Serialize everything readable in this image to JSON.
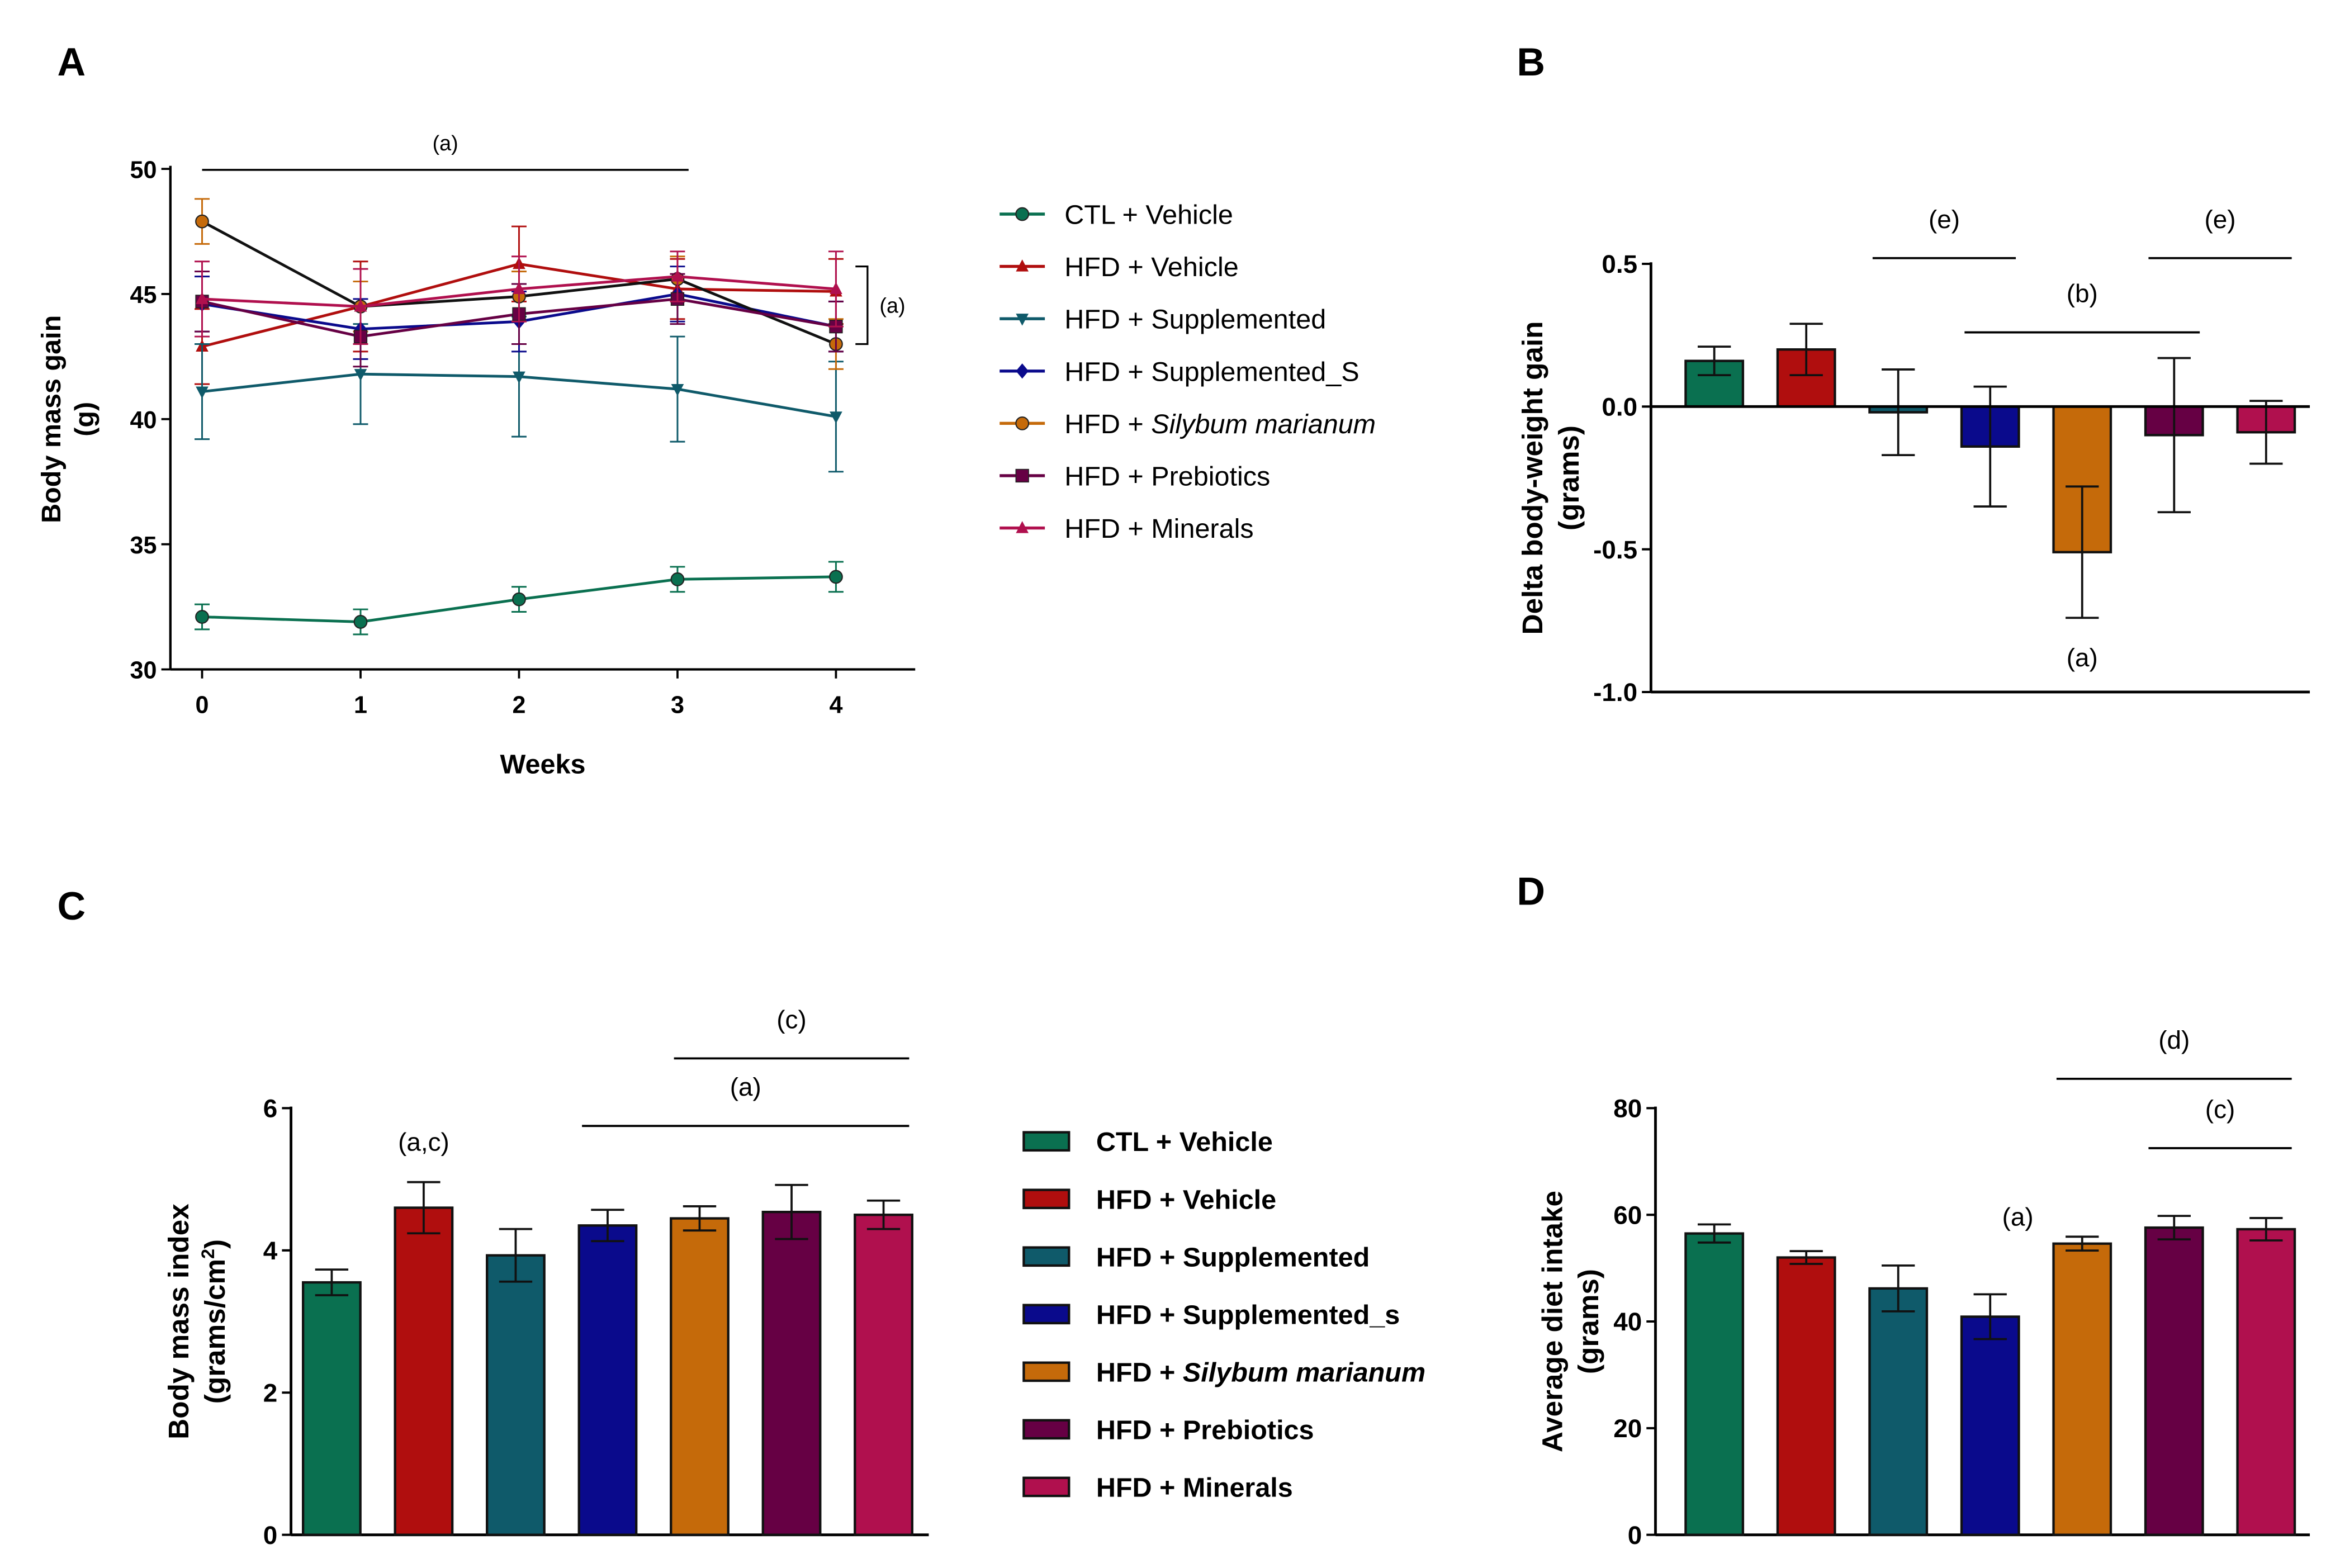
{
  "figure": {
    "groups": [
      {
        "name": "CTL + Vehicle",
        "legend_bold": "CTL + Vehicle",
        "color": "#0a7050",
        "marker": "circle"
      },
      {
        "name": "HFD + Vehicle",
        "legend_bold": "HFD + Vehicle",
        "color": "#b00e0e",
        "marker": "triangle-up"
      },
      {
        "name": "HFD + Supplemented",
        "legend_bold": "HFD + Supplemented",
        "color": "#0f5a6a",
        "marker": "triangle-down"
      },
      {
        "name": "HFD + Supplemented_S",
        "legend_bold": "HFD + Supplemented_s",
        "color": "#0a0a8c",
        "marker": "diamond"
      },
      {
        "name": "HFD + Silybum marianum",
        "legend_bold": "HFD + Silybum marianum",
        "legend_prefix": "HFD + ",
        "legend_italic": "Silybum marianum",
        "color": "#c56a0a",
        "marker": "circle"
      },
      {
        "name": "HFD + Prebiotics",
        "legend_bold": "HFD + Prebiotics",
        "color": "#660044",
        "marker": "square"
      },
      {
        "name": "HFD + Minerals",
        "legend_bold": "HFD + Minerals",
        "color": "#b0104e",
        "marker": "triangle-up"
      }
    ]
  },
  "chart_data": [
    {
      "panel": "A",
      "type": "line",
      "xlabel": "Weeks",
      "ylabel": "Body mass gain",
      "ylabel2": "(g)",
      "x": [
        0,
        1,
        2,
        3,
        4
      ],
      "xlim": [
        -0.2,
        4.5
      ],
      "ylim": [
        30,
        50
      ],
      "yticks": [
        30,
        35,
        40,
        45,
        50
      ],
      "series": [
        {
          "name": "CTL + Vehicle",
          "values": [
            32.1,
            31.9,
            32.8,
            33.6,
            33.7
          ],
          "errors": [
            0.5,
            0.5,
            0.5,
            0.5,
            0.6
          ]
        },
        {
          "name": "HFD + Vehicle",
          "values": [
            42.9,
            44.5,
            46.2,
            45.2,
            45.1
          ],
          "errors": [
            1.5,
            1.8,
            1.5,
            1.2,
            1.3
          ]
        },
        {
          "name": "HFD + Supplemented",
          "values": [
            41.1,
            41.8,
            41.7,
            41.2,
            40.1
          ],
          "errors": [
            1.9,
            2.0,
            2.4,
            2.1,
            2.2
          ]
        },
        {
          "name": "HFD + Supplemented_S",
          "values": [
            44.6,
            43.6,
            43.9,
            45.0,
            43.7
          ],
          "errors": [
            1.1,
            1.2,
            1.2,
            1.1,
            1.0
          ]
        },
        {
          "name": "HFD + Silybum marianum",
          "values": [
            47.9,
            44.5,
            44.9,
            45.6,
            43.0
          ],
          "errors": [
            0.9,
            1.0,
            1.0,
            0.9,
            1.0
          ]
        },
        {
          "name": "HFD + Prebiotics",
          "values": [
            44.7,
            43.3,
            44.2,
            44.8,
            43.7
          ],
          "errors": [
            1.2,
            1.2,
            1.2,
            1.0,
            1.0
          ]
        },
        {
          "name": "HFD + Minerals",
          "values": [
            44.8,
            44.5,
            45.2,
            45.7,
            45.2
          ],
          "errors": [
            1.5,
            1.5,
            1.3,
            1.0,
            1.5
          ]
        }
      ],
      "annotations": [
        {
          "text": "(a)",
          "kind": "line",
          "from": 0,
          "to": 3.07,
          "y": 50.2
        },
        {
          "text": "(a)",
          "kind": "bracket",
          "x": 4.18,
          "y1": 43.0,
          "y2": 45.5
        }
      ]
    },
    {
      "panel": "B",
      "type": "bar",
      "ylabel": "Delta body-weight gain",
      "ylabel2": "(grams)",
      "categories": [
        "CTL + Vehicle",
        "HFD + Vehicle",
        "HFD + Supplemented",
        "HFD + Supplemented_S",
        "HFD + Silybum marianum",
        "HFD + Prebiotics",
        "HFD + Minerals"
      ],
      "values": [
        0.16,
        0.2,
        -0.02,
        -0.14,
        -0.51,
        -0.1,
        -0.09
      ],
      "errors": [
        0.05,
        0.09,
        0.15,
        0.21,
        0.23,
        0.27,
        0.11
      ],
      "ylim": [
        -1.0,
        0.5
      ],
      "yticks": [
        -1.0,
        -0.5,
        0.0,
        0.5
      ],
      "ytick_labels": [
        "-1.0",
        "-0.5",
        "0.0",
        "0.5"
      ],
      "annotations": [
        {
          "text": "(e)",
          "from": 2,
          "to": 3,
          "y": 0.52,
          "line": true
        },
        {
          "text": "(b)",
          "from": 3,
          "to": 5,
          "y": 0.26,
          "line": true
        },
        {
          "text": "(e)",
          "from": 5,
          "to": 6,
          "y": 0.52,
          "line": true
        },
        {
          "text": "(a)",
          "at": 4.0,
          "y": -0.91,
          "line": false
        }
      ]
    },
    {
      "panel": "C",
      "type": "bar",
      "ylabel": "Body mass index",
      "ylabel2": "(grams/cm",
      "ylabel2_sup": "2",
      "ylabel2_end": ")",
      "categories": [
        "CTL + Vehicle",
        "HFD + Vehicle",
        "HFD + Supplemented",
        "HFD + Supplemented_S",
        "HFD + Silybum marianum",
        "HFD + Prebiotics",
        "HFD + Minerals"
      ],
      "values": [
        3.55,
        4.6,
        3.93,
        4.35,
        4.45,
        4.54,
        4.5
      ],
      "errors": [
        0.18,
        0.36,
        0.37,
        0.22,
        0.17,
        0.38,
        0.2
      ],
      "ylim": [
        0,
        6
      ],
      "yticks": [
        0,
        2,
        4,
        6
      ],
      "annotations": [
        {
          "text": "(c)",
          "from": 4,
          "to": 6,
          "y": 6.7,
          "line": true
        },
        {
          "text": "(a)",
          "from": 3,
          "to": 6,
          "y": 5.75,
          "line": true
        },
        {
          "text": "(a,c)",
          "at": 1,
          "y": 5.4,
          "line": false
        }
      ]
    },
    {
      "panel": "D",
      "type": "bar",
      "ylabel": "Average diet intake",
      "ylabel2": "(grams)",
      "categories": [
        "CTL + Vehicle",
        "HFD + Vehicle",
        "HFD + Supplemented",
        "HFD + Supplemented_S",
        "HFD + Silybum marianum",
        "HFD + Prebiotics",
        "HFD + Minerals"
      ],
      "values": [
        56.5,
        52.0,
        46.2,
        40.9,
        54.6,
        57.6,
        57.3
      ],
      "errors": [
        1.7,
        1.2,
        4.3,
        4.2,
        1.3,
        2.2,
        2.1
      ],
      "ylim": [
        0,
        80
      ],
      "yticks": [
        0,
        20,
        40,
        60,
        80
      ],
      "annotations": [
        {
          "text": "(d)",
          "from": 4,
          "to": 6,
          "y": 85.5,
          "line": true
        },
        {
          "text": "(c)",
          "from": 5,
          "to": 6,
          "y": 72.5,
          "line": true
        },
        {
          "text": "(a)",
          "at": 3.3,
          "y": 58,
          "line": false
        }
      ]
    }
  ]
}
